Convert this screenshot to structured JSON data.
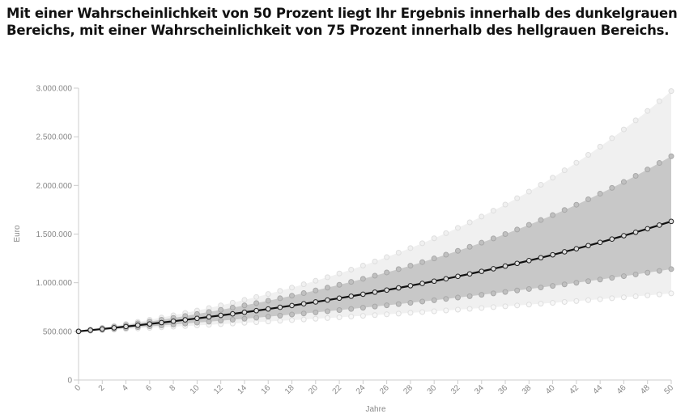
{
  "header": {
    "title_line1": "Mit einer Wahrscheinlichkeit von 50 Prozent liegt Ihr Ergebnis innerhalb des dunkelgrauen",
    "title_line2": "Bereichs, mit einer Wahrscheinlichkeit von 75 Prozent innerhalb des hellgrauen Bereichs."
  },
  "chart_data": {
    "type": "area",
    "xlabel": "Jahre",
    "ylabel": "Euro",
    "xlim": [
      0,
      50
    ],
    "ylim": [
      0,
      3000000
    ],
    "x_ticks": [
      "0",
      "2",
      "4",
      "6",
      "8",
      "10",
      "12",
      "14",
      "16",
      "18",
      "20",
      "22",
      "24",
      "26",
      "28",
      "30",
      "32",
      "34",
      "36",
      "38",
      "40",
      "42",
      "44",
      "46",
      "48",
      "50"
    ],
    "y_ticks": [
      "0",
      "500.000",
      "1.000.000",
      "1.500.000",
      "2.000.000",
      "2.500.000",
      "3.000.000"
    ],
    "grid": false,
    "legend": "none",
    "series_endpoints": {
      "start_value_year0": 500000,
      "p87_5_year50": 2970000,
      "p75_year50": 2300000,
      "median_year50": 1630000,
      "p25_year50": 1140000,
      "p12_5_year50": 890000
    },
    "colors": {
      "outer_band": "#f0f0f0",
      "inner_band": "#c8c8c8",
      "median_line": "#111111",
      "inner_markers": "#a8a8a8",
      "outer_markers": "#dedede"
    }
  }
}
